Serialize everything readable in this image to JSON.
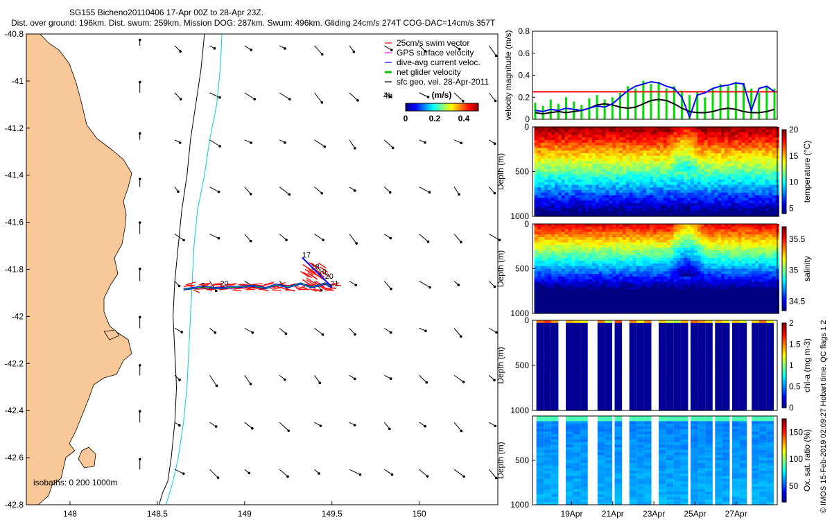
{
  "header": {
    "title": "SG155 Bicheno20110406 17-Apr 00Z to 28-Apr 23Z.",
    "subtitle": "Dist. over ground: 196km. Dist. swum: 259km. Mission DOG: 287km. Swum: 496km. Gliding 24cm/s 274T COG-DAC=14cm/s 357T"
  },
  "credit": "© IMOS 15-Feb-2019 02:09:27 Hobart time. QC flags 1  2",
  "chart_data": [
    {
      "type": "scatter",
      "panel": "map",
      "xlim": [
        147.75,
        150.45
      ],
      "ylim": [
        -42.8,
        -40.8
      ],
      "x_ticks": [
        "148",
        "148.5",
        "149",
        "149.5",
        "150"
      ],
      "y_ticks": [
        "-40.8",
        "-41",
        "-41.2",
        "-41.4",
        "-41.6",
        "-41.8",
        "-42",
        "-42.2",
        "-42.4",
        "-42.6",
        "-42.8"
      ],
      "land_color": "#f8c898",
      "isobaths_label": "isobaths: 0  200  1000m",
      "isobath_200_lon": [
        148.77,
        148.75,
        148.72,
        148.69,
        148.67,
        148.64,
        148.62,
        148.6,
        148.59,
        148.6,
        148.61,
        148.6,
        148.58,
        148.56,
        148.53,
        148.51
      ],
      "isobath_1000_lon": [
        148.87,
        148.86,
        148.84,
        148.8,
        148.77,
        148.73,
        148.71,
        148.7,
        148.69,
        148.68,
        148.67,
        148.65,
        148.62,
        148.59,
        148.57,
        148.55
      ],
      "isobath_lat": [
        -40.8,
        -40.95,
        -41.1,
        -41.25,
        -41.4,
        -41.55,
        -41.7,
        -41.85,
        -42.0,
        -42.15,
        -42.3,
        -42.45,
        -42.6,
        -42.7,
        -42.75,
        -42.8
      ],
      "track_lon": [
        148.65,
        148.75,
        148.85,
        148.95,
        149.05,
        149.12,
        149.18,
        149.25,
        149.32,
        149.38,
        149.42,
        149.46,
        149.5
      ],
      "track_lat": [
        -41.885,
        -41.875,
        -41.88,
        -41.875,
        -41.87,
        -41.88,
        -41.865,
        -41.875,
        -41.86,
        -41.875,
        -41.87,
        -41.86,
        -41.875
      ],
      "day_labels": [
        {
          "text": "17",
          "lon": 149.33,
          "lat": -41.75
        },
        {
          "text": "18",
          "lon": 149.38,
          "lat": -41.8
        },
        {
          "text": "19",
          "lon": 149.42,
          "lat": -41.82
        },
        {
          "text": "20",
          "lon": 149.46,
          "lat": -41.84
        },
        {
          "text": "21",
          "lon": 149.49,
          "lat": -41.87
        },
        {
          "text": "2",
          "lon": 148.75,
          "lat": -41.88
        },
        {
          "text": "20",
          "lon": 148.86,
          "lat": -41.87
        }
      ],
      "legend": [
        {
          "label": "25cm/s swim vector",
          "color": "#ff0000"
        },
        {
          "label": "GPS surface velocity",
          "color": "#ff00ff"
        },
        {
          "label": "dive-avg current veloc.",
          "color": "#0000ff"
        },
        {
          "label": "net glider velocity",
          "color": "#00cc00"
        },
        {
          "label": "sfc geo. vel. 28-Apr-2011",
          "color": "#000000"
        }
      ],
      "legend_scale_label": "4h",
      "colorbar": {
        "label": "(m/s)",
        "ticks": [
          "0",
          "0.2",
          "0.4"
        ],
        "range": [
          0,
          0.5
        ]
      }
    },
    {
      "type": "line",
      "panel": "velocity",
      "ylabel": "velocity magnitude (m/s)",
      "ylim": [
        0,
        0.8
      ],
      "y_ticks": [
        "0",
        "0.2",
        "0.4",
        "0.6",
        "0.8"
      ],
      "reference_line": 0.25,
      "series": [
        {
          "color": "#00dd00",
          "values": [
            0.15,
            0.12,
            0.18,
            0.14,
            0.2,
            0.16,
            0.13,
            0.19,
            0.22,
            0.18,
            0.2,
            0.24,
            0.3,
            0.28,
            0.35,
            0.32,
            0.34,
            0.28,
            0.3,
            0.26,
            0.22,
            0.25,
            0.2,
            0.28,
            0.32,
            0.3,
            0.34,
            0.33,
            0.28,
            0.24,
            0.3,
            0.28
          ]
        },
        {
          "color": "#0000ff",
          "values": [
            0.08,
            0.07,
            0.09,
            0.08,
            0.1,
            0.09,
            0.08,
            0.1,
            0.12,
            0.11,
            0.14,
            0.2,
            0.26,
            0.3,
            0.32,
            0.34,
            0.33,
            0.3,
            0.28,
            0.2,
            0.02,
            0.22,
            0.24,
            0.28,
            0.3,
            0.31,
            0.33,
            0.32,
            0.08,
            0.28,
            0.3,
            0.25
          ]
        },
        {
          "color": "#000000",
          "values": [
            0.06,
            0.05,
            0.06,
            0.07,
            0.06,
            0.07,
            0.08,
            0.1,
            0.13,
            0.14,
            0.13,
            0.11,
            0.1,
            0.11,
            0.14,
            0.17,
            0.18,
            0.17,
            0.14,
            0.1,
            0.07,
            0.06,
            0.06,
            0.07,
            0.09,
            0.1,
            0.09,
            0.07,
            0.06,
            0.06,
            0.07,
            0.09
          ]
        }
      ]
    },
    {
      "type": "heatmap",
      "panel": "temperature",
      "ylabel": "Depth (m)",
      "ylim": [
        1000,
        0
      ],
      "y_ticks": [
        "0",
        "500",
        "1000"
      ],
      "colorbar_label": "temperature (°C)",
      "colorbar_ticks": [
        "5",
        "10",
        "15",
        "20"
      ],
      "range": [
        4,
        20
      ]
    },
    {
      "type": "heatmap",
      "panel": "salinity",
      "ylabel": "Depth (m)",
      "ylim": [
        1000,
        0
      ],
      "y_ticks": [
        "0",
        "500",
        "1000"
      ],
      "colorbar_label": "salinity",
      "colorbar_ticks": [
        "34.5",
        "35",
        "35.5"
      ],
      "range": [
        34.35,
        35.7
      ]
    },
    {
      "type": "heatmap",
      "panel": "chla",
      "ylabel": "Depth (m)",
      "ylim": [
        1000,
        0
      ],
      "y_ticks": [
        "0",
        "500",
        "1000"
      ],
      "colorbar_label": "chl-a (mg m-3)",
      "colorbar_ticks": [
        "0",
        "0.5",
        "1",
        "1.5",
        "2"
      ],
      "range": [
        0,
        2
      ]
    },
    {
      "type": "heatmap",
      "panel": "oxygen",
      "ylabel": "Depth (m)",
      "ylim": [
        1000,
        0
      ],
      "y_ticks": [
        "500",
        "1000"
      ],
      "colorbar_label": "Ox. sat. ratio (%)",
      "colorbar_ticks": [
        "50",
        "100",
        "150"
      ],
      "range": [
        20,
        175
      ],
      "x_ticks": [
        "19Apr",
        "21Apr",
        "23Apr",
        "25Apr",
        "27Apr"
      ]
    }
  ]
}
